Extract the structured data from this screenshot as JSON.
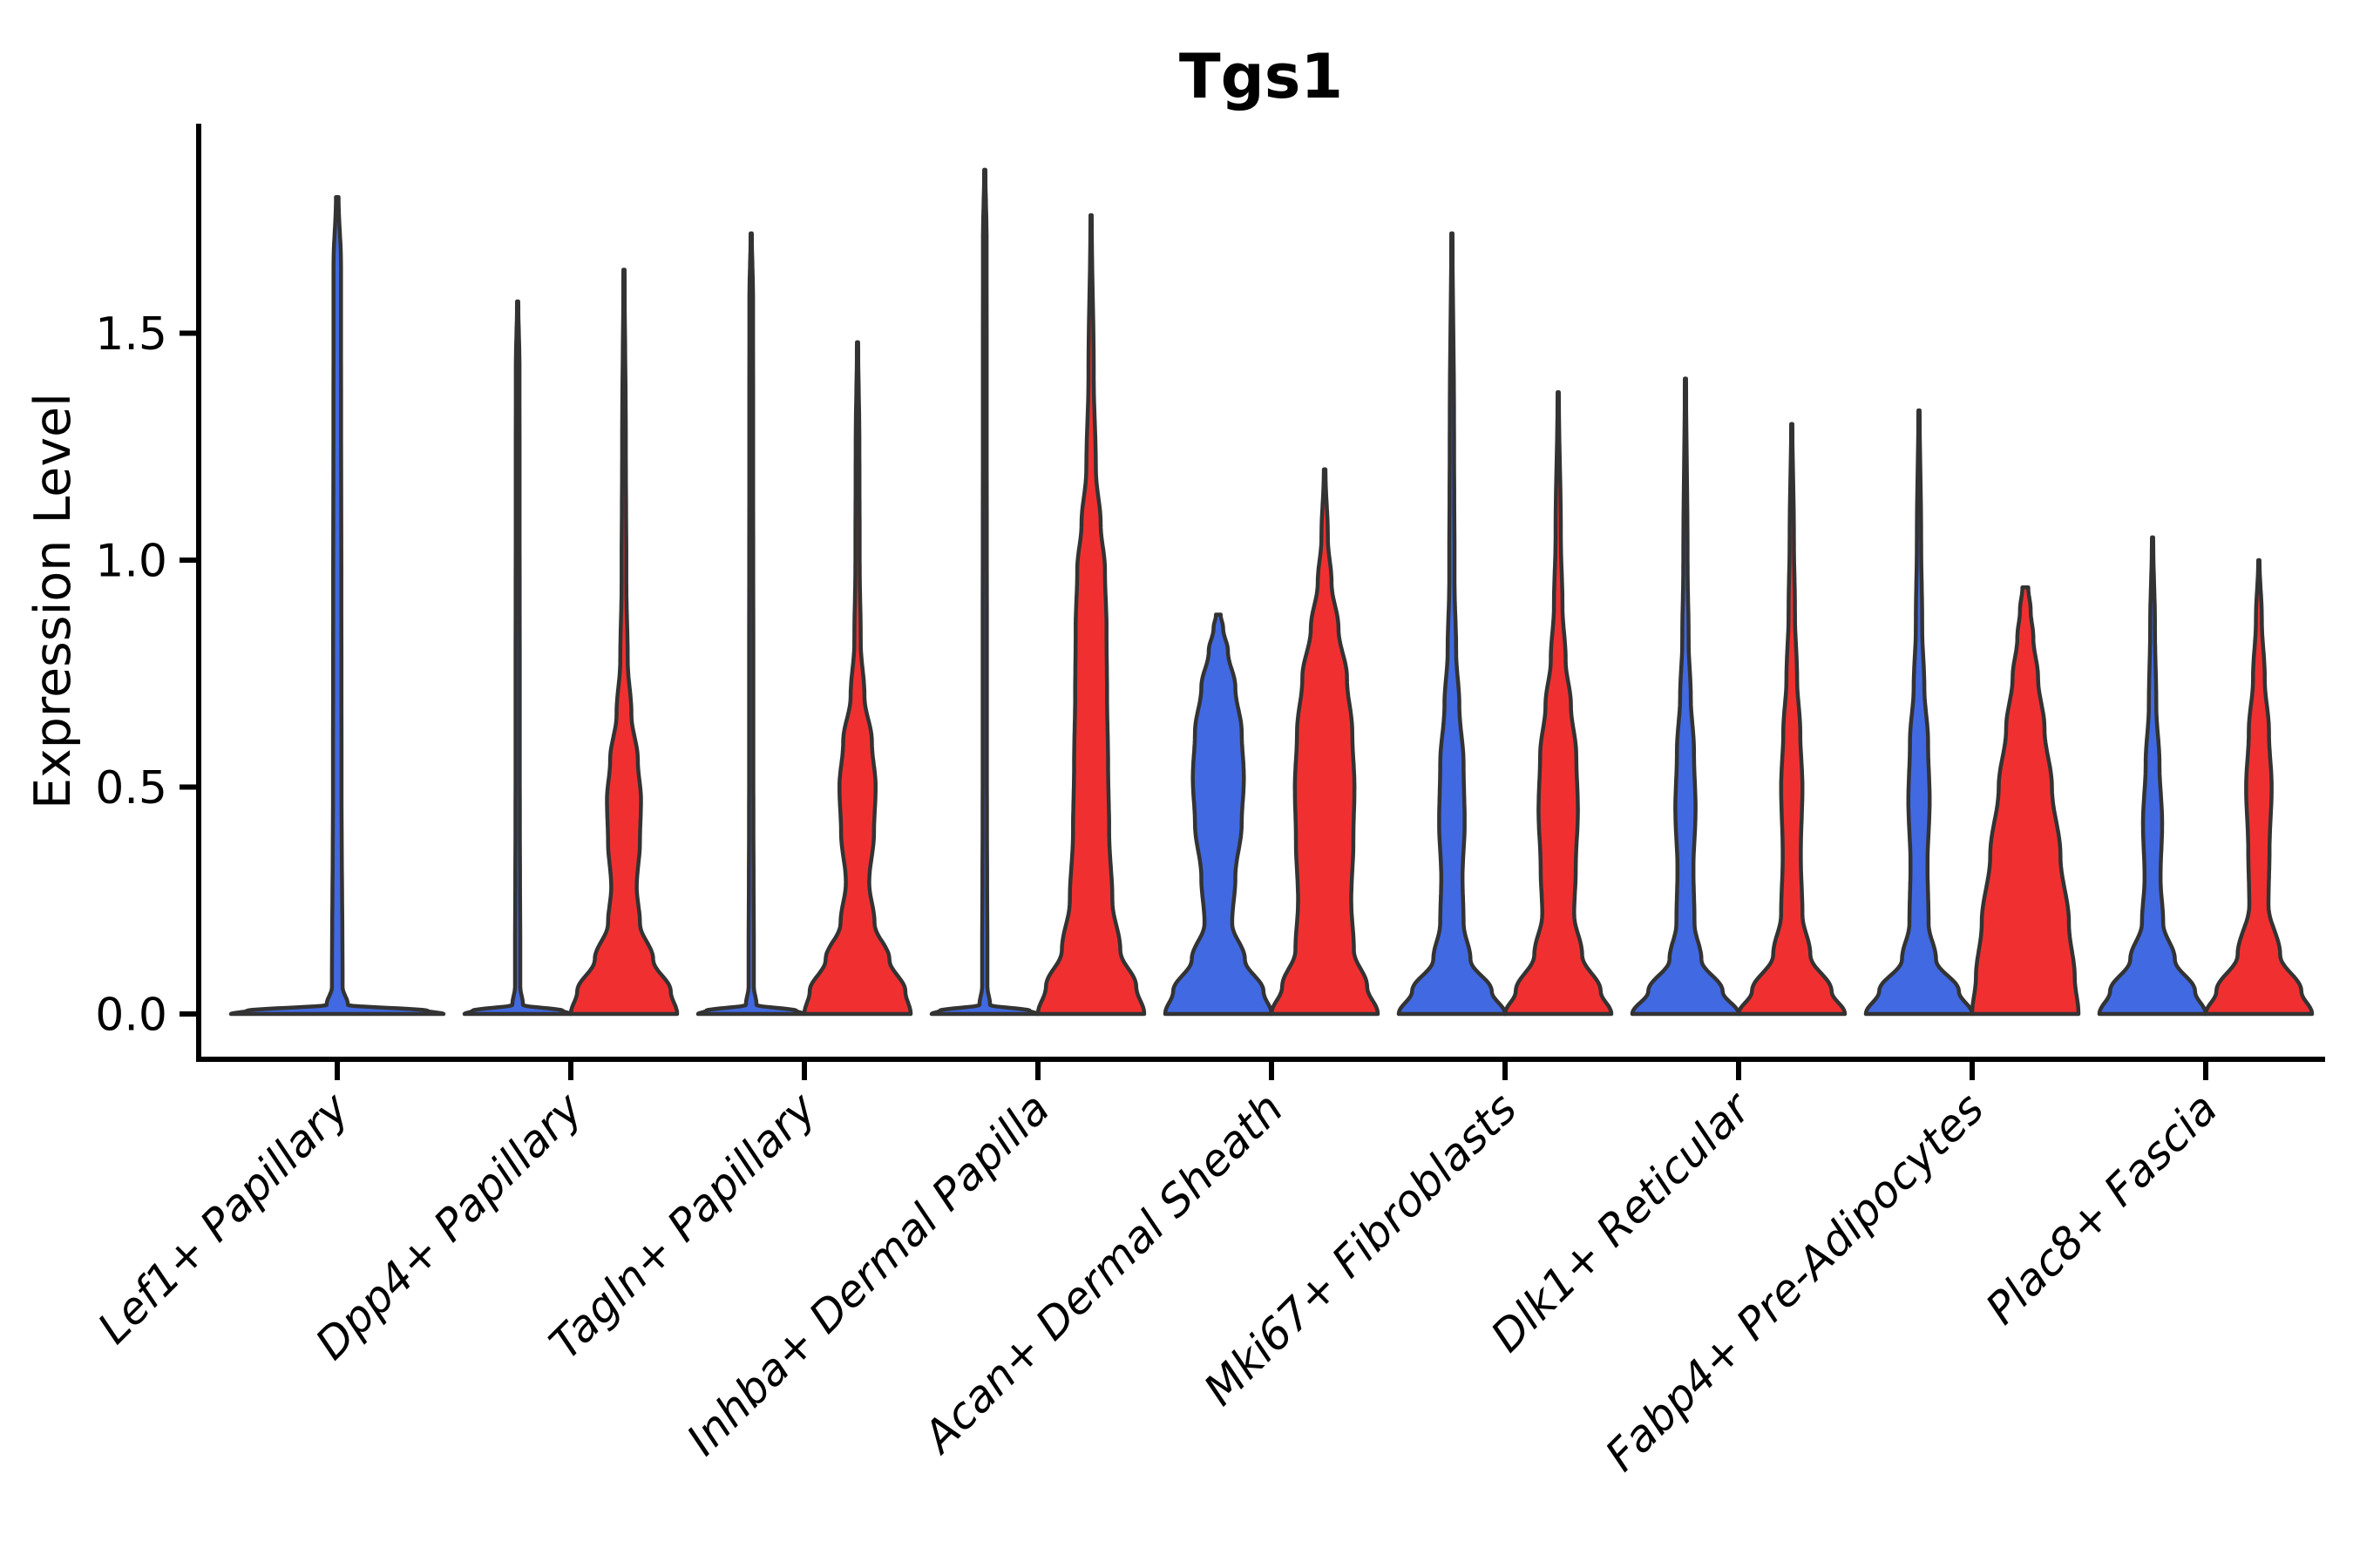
{
  "chart_data": {
    "type": "violin",
    "title": "Tgs1",
    "ylabel": "Expression Level",
    "xlabel": "",
    "ytick_labels": [
      "1.5",
      "1.0",
      "0.5",
      "0.0"
    ],
    "ytick_values": [
      1.5,
      1.0,
      0.5,
      0.0
    ],
    "ylim": [
      -0.1,
      1.96
    ],
    "grid": false,
    "legend": "none",
    "background_color": "#ffffff",
    "stroke_color": "#333333",
    "group_colors": {
      "blue": "#4169E1",
      "red": "#F03030"
    },
    "categories": [
      "Lef1+ Papillary",
      "Dpp4+ Papillary",
      "Tagln+ Papillary",
      "Inhba+ Dermal Papilla",
      "Acan+ Dermal Sheath",
      "Mki67+ Fibroblasts",
      "Dlk1+ Reticular",
      "Fabp4+ Pre-Adipocytes",
      "Plac8+ Fascia"
    ],
    "violins": [
      {
        "category": "Lef1+ Papillary",
        "category_index": 0,
        "group": "blue",
        "position": "center",
        "max_expression": 1.8,
        "shape": "collapsed-flat-with-spike",
        "profile": [
          [
            0,
            1.0
          ],
          [
            0.007,
            0.85
          ],
          [
            0.02,
            0.1
          ],
          [
            0.06,
            0.05
          ],
          [
            0.5,
            0.04
          ],
          [
            1.65,
            0.035
          ],
          [
            1.8,
            0.012
          ]
        ]
      },
      {
        "category": "Dpp4+ Papillary",
        "category_index": 1,
        "group": "blue",
        "position": "left",
        "max_expression": 1.57,
        "shape": "collapsed-flat-with-spike",
        "profile": [
          [
            0,
            1.0
          ],
          [
            0.007,
            0.85
          ],
          [
            0.02,
            0.1
          ],
          [
            0.06,
            0.05
          ],
          [
            0.5,
            0.04
          ],
          [
            1.42,
            0.035
          ],
          [
            1.57,
            0.012
          ]
        ]
      },
      {
        "category": "Dpp4+ Papillary",
        "category_index": 1,
        "group": "red",
        "position": "right",
        "max_expression": 1.64,
        "shape": "base-dome-leaf-tail",
        "profile": [
          [
            0,
            1.0
          ],
          [
            0.05,
            0.88
          ],
          [
            0.12,
            0.55
          ],
          [
            0.2,
            0.3
          ],
          [
            0.28,
            0.24
          ],
          [
            0.38,
            0.3
          ],
          [
            0.47,
            0.32
          ],
          [
            0.56,
            0.26
          ],
          [
            0.66,
            0.14
          ],
          [
            0.78,
            0.07
          ],
          [
            0.95,
            0.045
          ],
          [
            1.25,
            0.035
          ],
          [
            1.64,
            0.012
          ]
        ]
      },
      {
        "category": "Tagln+ Papillary",
        "category_index": 2,
        "group": "blue",
        "position": "left",
        "max_expression": 1.72,
        "shape": "collapsed-flat-with-spike",
        "profile": [
          [
            0,
            1.0
          ],
          [
            0.007,
            0.85
          ],
          [
            0.02,
            0.1
          ],
          [
            0.06,
            0.05
          ],
          [
            0.5,
            0.04
          ],
          [
            1.57,
            0.035
          ],
          [
            1.72,
            0.012
          ]
        ]
      },
      {
        "category": "Tagln+ Papillary",
        "category_index": 2,
        "group": "red",
        "position": "right",
        "max_expression": 1.48,
        "shape": "base-dome-leaf-tail",
        "profile": [
          [
            0,
            1.0
          ],
          [
            0.05,
            0.9
          ],
          [
            0.12,
            0.6
          ],
          [
            0.2,
            0.32
          ],
          [
            0.29,
            0.22
          ],
          [
            0.4,
            0.31
          ],
          [
            0.5,
            0.34
          ],
          [
            0.6,
            0.27
          ],
          [
            0.7,
            0.13
          ],
          [
            0.82,
            0.06
          ],
          [
            1.0,
            0.04
          ],
          [
            1.25,
            0.035
          ],
          [
            1.48,
            0.012
          ]
        ]
      },
      {
        "category": "Inhba+ Dermal Papilla",
        "category_index": 3,
        "group": "blue",
        "position": "left",
        "max_expression": 1.86,
        "shape": "collapsed-flat-with-spike",
        "profile": [
          [
            0,
            1.0
          ],
          [
            0.007,
            0.85
          ],
          [
            0.02,
            0.1
          ],
          [
            0.06,
            0.05
          ],
          [
            0.5,
            0.04
          ],
          [
            1.7,
            0.035
          ],
          [
            1.86,
            0.012
          ]
        ]
      },
      {
        "category": "Inhba+ Dermal Papilla",
        "category_index": 3,
        "group": "red",
        "position": "right",
        "max_expression": 1.76,
        "shape": "wide-column-tail",
        "profile": [
          [
            0,
            1.0
          ],
          [
            0.06,
            0.85
          ],
          [
            0.14,
            0.55
          ],
          [
            0.25,
            0.4
          ],
          [
            0.4,
            0.34
          ],
          [
            0.55,
            0.32
          ],
          [
            0.7,
            0.3
          ],
          [
            0.85,
            0.29
          ],
          [
            0.98,
            0.26
          ],
          [
            1.08,
            0.18
          ],
          [
            1.2,
            0.09
          ],
          [
            1.4,
            0.05
          ],
          [
            1.76,
            0.012
          ]
        ]
      },
      {
        "category": "Acan+ Dermal Sheath",
        "category_index": 4,
        "group": "blue",
        "position": "left",
        "max_expression": 0.88,
        "shape": "column-blunt-top",
        "profile": [
          [
            0,
            1.0
          ],
          [
            0.05,
            0.85
          ],
          [
            0.12,
            0.5
          ],
          [
            0.2,
            0.26
          ],
          [
            0.3,
            0.32
          ],
          [
            0.42,
            0.44
          ],
          [
            0.52,
            0.48
          ],
          [
            0.62,
            0.44
          ],
          [
            0.72,
            0.32
          ],
          [
            0.8,
            0.18
          ],
          [
            0.85,
            0.09
          ],
          [
            0.88,
            0.045
          ]
        ]
      },
      {
        "category": "Acan+ Dermal Sheath",
        "category_index": 4,
        "group": "red",
        "position": "right",
        "max_expression": 1.2,
        "shape": "wide-column-tail",
        "profile": [
          [
            0,
            1.0
          ],
          [
            0.06,
            0.8
          ],
          [
            0.14,
            0.55
          ],
          [
            0.25,
            0.5
          ],
          [
            0.38,
            0.54
          ],
          [
            0.5,
            0.56
          ],
          [
            0.62,
            0.52
          ],
          [
            0.74,
            0.42
          ],
          [
            0.85,
            0.26
          ],
          [
            0.95,
            0.13
          ],
          [
            1.05,
            0.06
          ],
          [
            1.2,
            0.015
          ]
        ]
      },
      {
        "category": "Mki67+ Fibroblasts",
        "category_index": 5,
        "group": "blue",
        "position": "left",
        "max_expression": 1.72,
        "shape": "base-dome-leaf-tail",
        "profile": [
          [
            0,
            1.0
          ],
          [
            0.05,
            0.75
          ],
          [
            0.12,
            0.35
          ],
          [
            0.2,
            0.22
          ],
          [
            0.3,
            0.2
          ],
          [
            0.42,
            0.24
          ],
          [
            0.55,
            0.22
          ],
          [
            0.68,
            0.14
          ],
          [
            0.8,
            0.08
          ],
          [
            0.95,
            0.05
          ],
          [
            1.3,
            0.04
          ],
          [
            1.72,
            0.012
          ]
        ]
      },
      {
        "category": "Mki67+ Fibroblasts",
        "category_index": 5,
        "group": "red",
        "position": "right",
        "max_expression": 1.37,
        "shape": "base-dome-leaf-tail",
        "profile": [
          [
            0,
            1.0
          ],
          [
            0.05,
            0.8
          ],
          [
            0.13,
            0.45
          ],
          [
            0.22,
            0.3
          ],
          [
            0.32,
            0.33
          ],
          [
            0.45,
            0.37
          ],
          [
            0.57,
            0.34
          ],
          [
            0.68,
            0.24
          ],
          [
            0.78,
            0.14
          ],
          [
            0.9,
            0.08
          ],
          [
            1.05,
            0.05
          ],
          [
            1.37,
            0.012
          ]
        ]
      },
      {
        "category": "Dlk1+ Reticular",
        "category_index": 6,
        "group": "blue",
        "position": "left",
        "max_expression": 1.4,
        "shape": "base-dome-leaf-tail",
        "profile": [
          [
            0,
            1.0
          ],
          [
            0.05,
            0.7
          ],
          [
            0.12,
            0.3
          ],
          [
            0.2,
            0.17
          ],
          [
            0.32,
            0.15
          ],
          [
            0.45,
            0.19
          ],
          [
            0.58,
            0.16
          ],
          [
            0.7,
            0.1
          ],
          [
            0.82,
            0.06
          ],
          [
            1.0,
            0.04
          ],
          [
            1.4,
            0.012
          ]
        ]
      },
      {
        "category": "Dlk1+ Reticular",
        "category_index": 6,
        "group": "red",
        "position": "right",
        "max_expression": 1.3,
        "shape": "base-dome-leaf-tail",
        "profile": [
          [
            0,
            1.0
          ],
          [
            0.05,
            0.75
          ],
          [
            0.13,
            0.35
          ],
          [
            0.22,
            0.2
          ],
          [
            0.35,
            0.17
          ],
          [
            0.5,
            0.2
          ],
          [
            0.62,
            0.16
          ],
          [
            0.74,
            0.1
          ],
          [
            0.88,
            0.06
          ],
          [
            1.05,
            0.04
          ],
          [
            1.3,
            0.012
          ]
        ]
      },
      {
        "category": "Fabp4+ Pre-Adipocytes",
        "category_index": 7,
        "group": "blue",
        "position": "left",
        "max_expression": 1.33,
        "shape": "base-dome-leaf-tail",
        "profile": [
          [
            0,
            1.0
          ],
          [
            0.05,
            0.75
          ],
          [
            0.12,
            0.32
          ],
          [
            0.2,
            0.18
          ],
          [
            0.33,
            0.16
          ],
          [
            0.47,
            0.2
          ],
          [
            0.6,
            0.17
          ],
          [
            0.72,
            0.1
          ],
          [
            0.85,
            0.06
          ],
          [
            1.05,
            0.04
          ],
          [
            1.33,
            0.012
          ]
        ]
      },
      {
        "category": "Fabp4+ Pre-Adipocytes",
        "category_index": 7,
        "group": "red",
        "position": "right",
        "max_expression": 0.94,
        "shape": "wide-wedge-blunt-top",
        "profile": [
          [
            0,
            1.0
          ],
          [
            0.08,
            0.93
          ],
          [
            0.2,
            0.82
          ],
          [
            0.35,
            0.66
          ],
          [
            0.5,
            0.5
          ],
          [
            0.63,
            0.36
          ],
          [
            0.74,
            0.24
          ],
          [
            0.83,
            0.15
          ],
          [
            0.89,
            0.1
          ],
          [
            0.94,
            0.055
          ]
        ]
      },
      {
        "category": "Plac8+ Fascia",
        "category_index": 8,
        "group": "blue",
        "position": "left",
        "max_expression": 1.05,
        "shape": "base-dome-leaf-tail",
        "profile": [
          [
            0,
            1.0
          ],
          [
            0.05,
            0.8
          ],
          [
            0.12,
            0.42
          ],
          [
            0.2,
            0.2
          ],
          [
            0.3,
            0.15
          ],
          [
            0.42,
            0.18
          ],
          [
            0.55,
            0.13
          ],
          [
            0.68,
            0.07
          ],
          [
            0.85,
            0.045
          ],
          [
            1.05,
            0.012
          ]
        ]
      },
      {
        "category": "Plac8+ Fascia",
        "category_index": 8,
        "group": "red",
        "position": "right",
        "max_expression": 1.0,
        "shape": "base-dome-leaf-tail",
        "profile": [
          [
            0,
            1.0
          ],
          [
            0.05,
            0.8
          ],
          [
            0.13,
            0.4
          ],
          [
            0.24,
            0.18
          ],
          [
            0.36,
            0.2
          ],
          [
            0.5,
            0.24
          ],
          [
            0.62,
            0.19
          ],
          [
            0.74,
            0.11
          ],
          [
            0.87,
            0.055
          ],
          [
            1.0,
            0.012
          ]
        ]
      }
    ]
  }
}
